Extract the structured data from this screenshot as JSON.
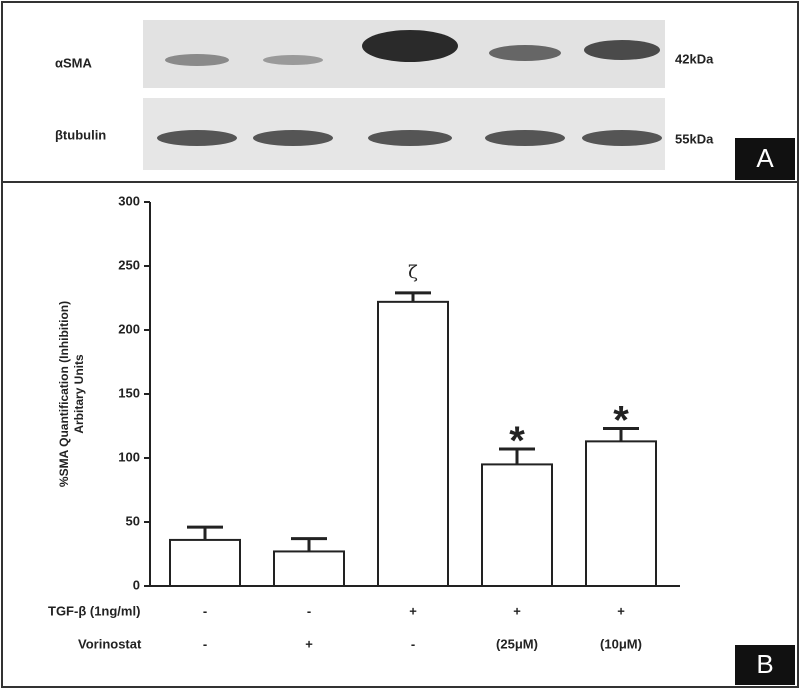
{
  "blot": {
    "rows": [
      {
        "label": "αSMA",
        "size": "42kDa"
      },
      {
        "label": "βtubulin",
        "size": "55kDa"
      }
    ],
    "panel": "A"
  },
  "chart_data": {
    "type": "bar",
    "panel": "B",
    "ylabel": [
      "%SMA Quantification (Inhibition)",
      "Arbitary Units"
    ],
    "categories": [
      null,
      null,
      null,
      null,
      null
    ],
    "values": [
      36,
      27,
      222,
      95,
      113
    ],
    "errors": [
      10,
      10,
      7,
      12,
      10
    ],
    "annotations": [
      null,
      null,
      "ζ",
      "*",
      "*"
    ],
    "color": "#ffffff",
    "ylim": [
      0,
      300
    ],
    "yticks": [
      0,
      50,
      100,
      150,
      200,
      250,
      300
    ],
    "rows": [
      {
        "label": "TGF-β (1ng/ml)",
        "values": [
          "-",
          "-",
          "+",
          "+",
          "+"
        ]
      },
      {
        "label": "Vorinostat",
        "values": [
          "-",
          "+",
          "-",
          "(25μM)",
          "(10μM)"
        ]
      }
    ]
  }
}
